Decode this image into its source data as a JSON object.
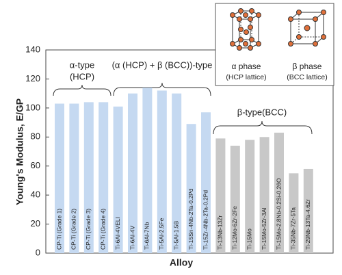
{
  "chart_data": {
    "type": "bar",
    "y_label": "Young's Modulus, E/GP",
    "x_label": "Alloy",
    "categories": [
      "CP-Ti (Grade 1)",
      "CP-Ti (Grade 2)",
      "CP-Ti (Grade 3)",
      "CP-Ti (Grade 4)",
      "Ti-6Al-4VELI",
      "Ti-6Al-4V",
      "Ti-6Al-7Nb",
      "Ti-5Al-2.5Fe",
      "Ti-5Al-1.5B",
      "Ti-15Sn-4Nb-2Ta-0.2Pd",
      "Ti-15Zr-4Nb-2Ta-0.2Pd",
      "Ti-13Nb-13Zr",
      "Ti-12Mo-6Zr-2Fe",
      "Ti-15Mo",
      "Ti-15Mo-5Zr-3Al",
      "Ti-15Mo-2.8Nb-0.2Si-0.26O",
      "Ti-35Nb-7Zr-5Ta",
      "Ti-29Nb-13Ta-4.6Zr"
    ],
    "values": [
      103,
      103,
      104,
      104,
      101,
      110,
      114,
      112,
      110,
      89,
      97,
      79,
      74,
      78,
      80,
      83,
      55,
      58
    ],
    "colors": [
      "#c5d9f1",
      "#c5d9f1",
      "#c5d9f1",
      "#c5d9f1",
      "#c5d9f1",
      "#c5d9f1",
      "#c5d9f1",
      "#c5d9f1",
      "#c5d9f1",
      "#c5d9f1",
      "#c5d9f1",
      "#c8c8c8",
      "#c8c8c8",
      "#c8c8c8",
      "#c8c8c8",
      "#c8c8c8",
      "#c8c8c8",
      "#c8c8c8"
    ],
    "ylim": [
      0,
      140
    ],
    "yticks": [
      0,
      20,
      40,
      60,
      80,
      100,
      120,
      140
    ],
    "annotations": [
      {
        "lines": [
          "α-type",
          "(HCP)"
        ]
      },
      {
        "lines": [
          "(α (HCP) + β (BCC))-type"
        ]
      },
      {
        "lines": [
          "β-type(BCC)"
        ]
      }
    ],
    "inset": [
      {
        "lines": [
          "α phase",
          "(HCP lattice)"
        ]
      },
      {
        "lines": [
          "β phase",
          "(BCC lattice)"
        ]
      }
    ]
  }
}
